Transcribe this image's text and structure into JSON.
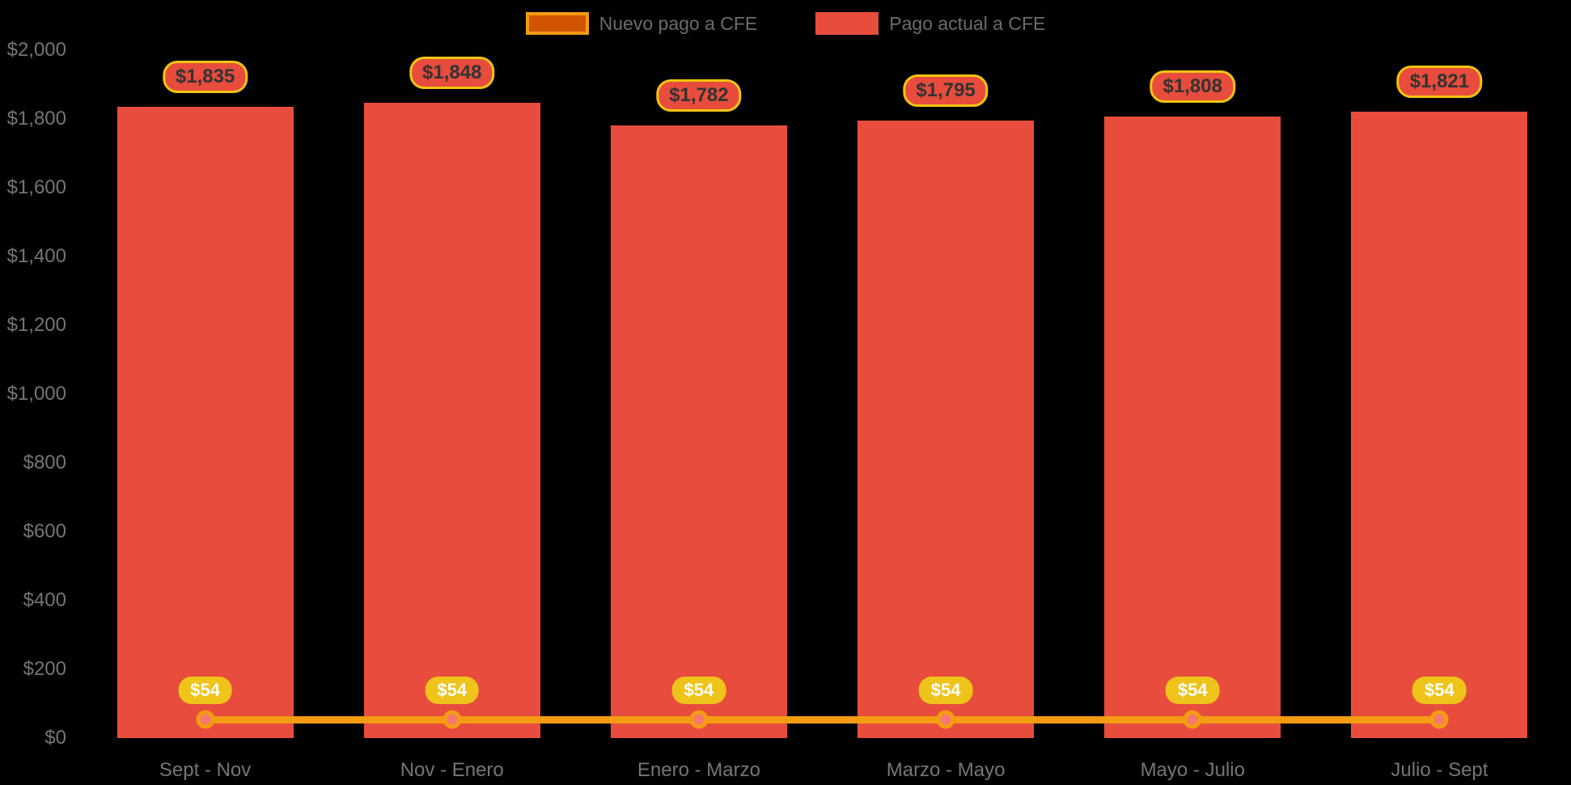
{
  "colors": {
    "background": "#000000",
    "bar": "#E74C3C",
    "line": "#F39C12",
    "line_legend_fill": "#D35400",
    "marker_fill": "#F5796F",
    "marker_ring": "#F39C12",
    "value_pill_bg": "#E74C3C",
    "value_pill_border": "#F1C40F",
    "value_pill_text": "#333333",
    "small_pill_bg": "#EEC31A",
    "small_pill_text": "#FFFFFF",
    "axis_text": "#757575",
    "legend_text": "#6B6B6B"
  },
  "legend": {
    "items": [
      {
        "label": "Nuevo pago a CFE",
        "swatch_fill": "#D35400",
        "swatch_border": "#F39C12"
      },
      {
        "label": "Pago actual a CFE",
        "swatch_fill": "#E74C3C",
        "swatch_border": "#E74C3C"
      }
    ]
  },
  "chart_data": {
    "type": "bar",
    "title": "",
    "xlabel": "",
    "ylabel": "",
    "categories": [
      "Sept - Nov",
      "Nov - Enero",
      "Enero - Marzo",
      "Marzo - Mayo",
      "Mayo - Julio",
      "Julio - Sept"
    ],
    "series": [
      {
        "name": "Pago actual a CFE",
        "type": "bar",
        "color": "#E74C3C",
        "values": [
          1835,
          1848,
          1782,
          1795,
          1808,
          1821
        ],
        "labels": [
          "$1,835",
          "$1,848",
          "$1,782",
          "$1,795",
          "$1,808",
          "$1,821"
        ]
      },
      {
        "name": "Nuevo pago a CFE",
        "type": "line",
        "color": "#F39C12",
        "values": [
          54,
          54,
          54,
          54,
          54,
          54
        ],
        "labels": [
          "$54",
          "$54",
          "$54",
          "$54",
          "$54",
          "$54"
        ]
      }
    ],
    "ylim": [
      0,
      2000
    ],
    "y_ticks": [
      {
        "value": 0,
        "label": "$0"
      },
      {
        "value": 200,
        "label": "$200"
      },
      {
        "value": 400,
        "label": "$400"
      },
      {
        "value": 600,
        "label": "$600"
      },
      {
        "value": 800,
        "label": "$800"
      },
      {
        "value": 1000,
        "label": "$1,000"
      },
      {
        "value": 1200,
        "label": "$1,200"
      },
      {
        "value": 1400,
        "label": "$1,400"
      },
      {
        "value": 1600,
        "label": "$1,600"
      },
      {
        "value": 1800,
        "label": "$1,800"
      },
      {
        "value": 2000,
        "label": "$2,000"
      }
    ],
    "grid": false,
    "legend_position": "top"
  }
}
